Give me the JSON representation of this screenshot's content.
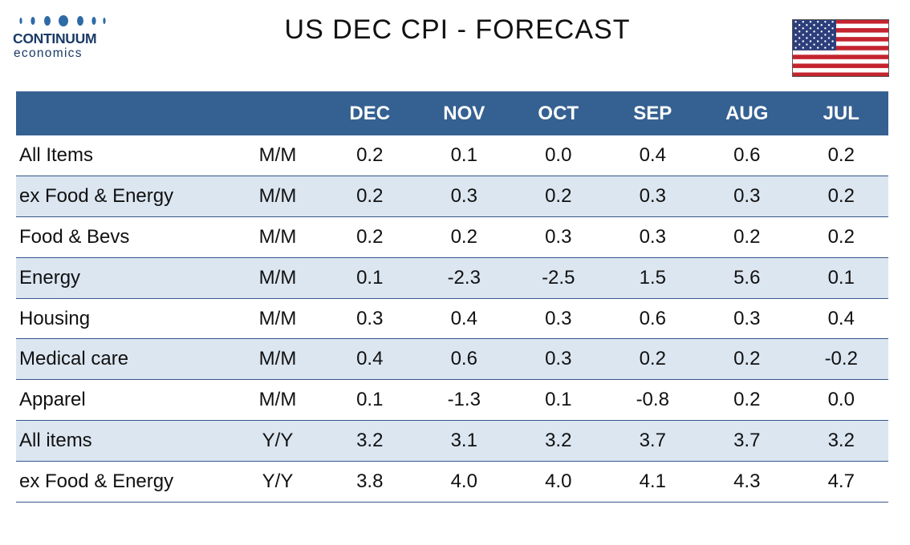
{
  "brand": {
    "name": "CONTINUUM",
    "sub": "economics",
    "color": "#1a3a66"
  },
  "title": "US DEC CPI - FORECAST",
  "flag_icon": "us-flag-icon",
  "colors": {
    "header_bg": "#356192",
    "alt_row_bg": "#dce6f1",
    "row_rule": "#35568a"
  },
  "chart_data": {
    "type": "table",
    "columns": [
      "",
      "",
      "DEC",
      "NOV",
      "OCT",
      "SEP",
      "AUG",
      "JUL"
    ],
    "rows": [
      {
        "label": "All Items",
        "measure": "M/M",
        "values": [
          "0.2",
          "0.1",
          "0.0",
          "0.4",
          "0.6",
          "0.2"
        ]
      },
      {
        "label": "ex Food & Energy",
        "measure": "M/M",
        "values": [
          "0.2",
          "0.3",
          "0.2",
          "0.3",
          "0.3",
          "0.2"
        ]
      },
      {
        "label": "Food & Bevs",
        "measure": "M/M",
        "values": [
          "0.2",
          "0.2",
          "0.3",
          "0.3",
          "0.2",
          "0.2"
        ]
      },
      {
        "label": "Energy",
        "measure": "M/M",
        "values": [
          "0.1",
          "-2.3",
          "-2.5",
          "1.5",
          "5.6",
          "0.1"
        ]
      },
      {
        "label": "Housing",
        "measure": "M/M",
        "values": [
          "0.3",
          "0.4",
          "0.3",
          "0.6",
          "0.3",
          "0.4"
        ]
      },
      {
        "label": "Medical care",
        "measure": "M/M",
        "values": [
          "0.4",
          "0.6",
          "0.3",
          "0.2",
          "0.2",
          "-0.2"
        ]
      },
      {
        "label": "Apparel",
        "measure": "M/M",
        "values": [
          "0.1",
          "-1.3",
          "0.1",
          "-0.8",
          "0.2",
          "0.0"
        ]
      },
      {
        "label": "All items",
        "measure": "Y/Y",
        "values": [
          "3.2",
          "3.1",
          "3.2",
          "3.7",
          "3.7",
          "3.2"
        ]
      },
      {
        "label": "ex Food & Energy",
        "measure": "Y/Y",
        "values": [
          "3.8",
          "4.0",
          "4.0",
          "4.1",
          "4.3",
          "4.7"
        ]
      }
    ]
  }
}
